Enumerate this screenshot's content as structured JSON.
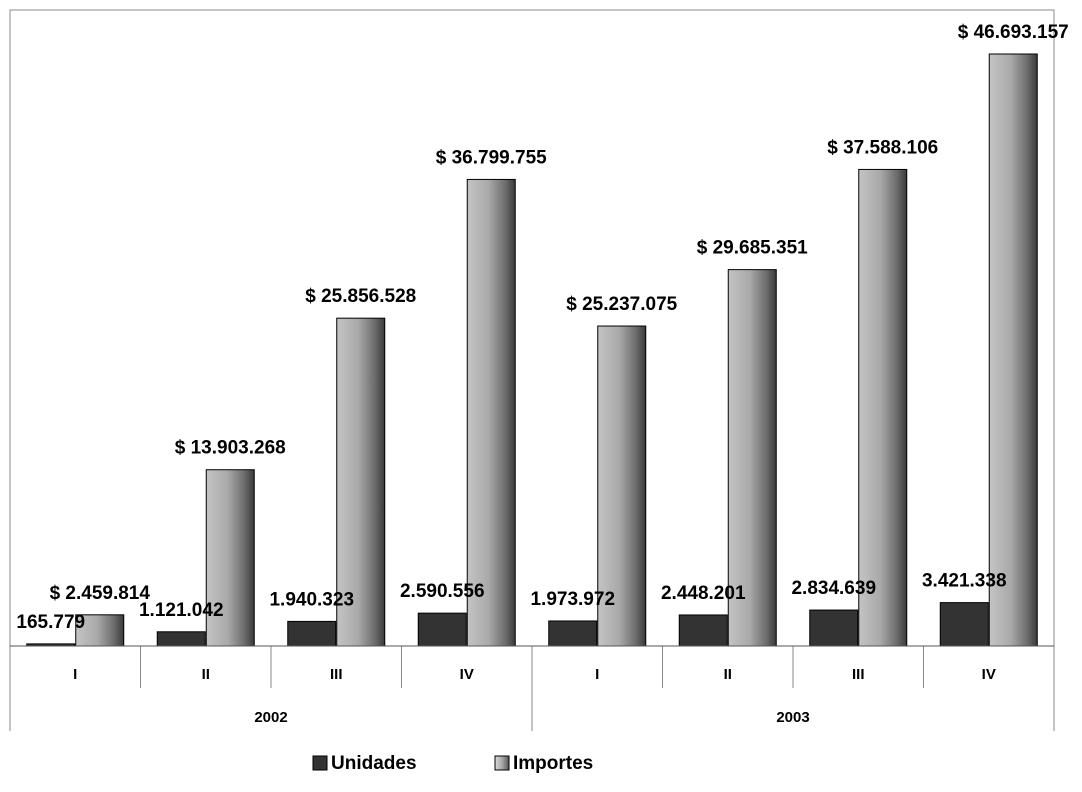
{
  "chart_data": {
    "type": "bar",
    "groups": [
      {
        "label": "2002",
        "categories": [
          "I",
          "II",
          "III",
          "IV"
        ]
      },
      {
        "label": "2003",
        "categories": [
          "I",
          "II",
          "III",
          "IV"
        ]
      }
    ],
    "series": [
      {
        "name": "Unidades",
        "color": "#333333",
        "values": [
          165779,
          1121042,
          1940323,
          2590556,
          1973972,
          2448201,
          2834639,
          3421338
        ],
        "labels": [
          "165.779",
          "1.121.042",
          "1.940.323",
          "2.590.556",
          "1.973.972",
          "2.448.201",
          "2.834.639",
          "3.421.338"
        ]
      },
      {
        "name": "Importes",
        "color": "#b3b3b3",
        "values": [
          2459814,
          13903268,
          25856528,
          36799755,
          25237075,
          29685351,
          37588106,
          46693157
        ],
        "labels": [
          "$ 2.459.814",
          "$ 13.903.268",
          "$ 25.856.528",
          "$ 36.799.755",
          "$ 25.237.075",
          "$ 29.685.351",
          "$ 37.588.106",
          "$ 46.693.157"
        ]
      }
    ],
    "grid": false,
    "legend": "bottom-center"
  }
}
